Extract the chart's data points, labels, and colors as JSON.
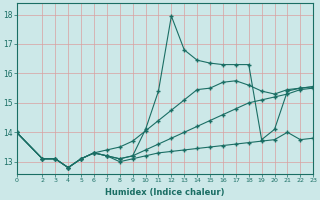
{
  "xlabel": "Humidex (Indice chaleur)",
  "bg_color": "#cce8e8",
  "line_color": "#1a6e64",
  "xlim": [
    0,
    23
  ],
  "ylim": [
    12.6,
    18.4
  ],
  "yticks": [
    13,
    14,
    15,
    16,
    17,
    18
  ],
  "xticks": [
    0,
    2,
    3,
    4,
    5,
    6,
    7,
    8,
    9,
    10,
    11,
    12,
    13,
    14,
    15,
    16,
    17,
    18,
    19,
    20,
    21,
    22,
    23
  ],
  "xtick_labels": [
    "0",
    "2",
    "3",
    "4",
    "5",
    "6",
    "7",
    "8",
    "9",
    "10",
    "11",
    "12",
    "13",
    "14",
    "15",
    "16",
    "17",
    "18",
    "19",
    "20",
    "21",
    "22",
    "23"
  ],
  "lines": [
    {
      "x": [
        0,
        2,
        3,
        4,
        5,
        6,
        7,
        8,
        9,
        10,
        11,
        12,
        13,
        14,
        15,
        16,
        17,
        18,
        19,
        20,
        21,
        22,
        23
      ],
      "y": [
        14.0,
        13.1,
        13.1,
        12.8,
        13.1,
        13.3,
        13.2,
        13.1,
        13.2,
        13.4,
        13.6,
        13.8,
        14.0,
        14.2,
        14.4,
        14.6,
        14.8,
        15.0,
        15.1,
        15.2,
        15.3,
        15.45,
        15.5
      ]
    },
    {
      "x": [
        0,
        2,
        3,
        4,
        5,
        6,
        7,
        8,
        9,
        10,
        11,
        12,
        13,
        14,
        15,
        16,
        17,
        18,
        19,
        20,
        21,
        22,
        23
      ],
      "y": [
        14.0,
        13.1,
        13.1,
        12.8,
        13.1,
        13.3,
        13.4,
        13.5,
        13.7,
        14.05,
        14.4,
        14.75,
        15.1,
        15.45,
        15.5,
        15.7,
        15.75,
        15.6,
        15.4,
        15.3,
        15.45,
        15.5,
        15.55
      ]
    },
    {
      "x": [
        0,
        2,
        3,
        4,
        5,
        6,
        7,
        8,
        9,
        10,
        11,
        12,
        13,
        14,
        15,
        16,
        17,
        18,
        19,
        20,
        21,
        22,
        23
      ],
      "y": [
        14.0,
        13.1,
        13.1,
        12.8,
        13.1,
        13.3,
        13.2,
        13.1,
        13.2,
        14.1,
        15.4,
        17.95,
        16.8,
        16.45,
        16.35,
        16.3,
        16.3,
        16.3,
        13.75,
        14.1,
        15.4,
        15.5,
        15.55
      ]
    },
    {
      "x": [
        0,
        2,
        3,
        4,
        5,
        6,
        7,
        8,
        9,
        10,
        11,
        12,
        13,
        14,
        15,
        16,
        17,
        18,
        19,
        20,
        21,
        22,
        23
      ],
      "y": [
        14.0,
        13.1,
        13.1,
        12.8,
        13.1,
        13.3,
        13.2,
        13.0,
        13.1,
        13.2,
        13.3,
        13.35,
        13.4,
        13.45,
        13.5,
        13.55,
        13.6,
        13.65,
        13.7,
        13.75,
        14.0,
        13.75,
        13.8
      ]
    }
  ]
}
